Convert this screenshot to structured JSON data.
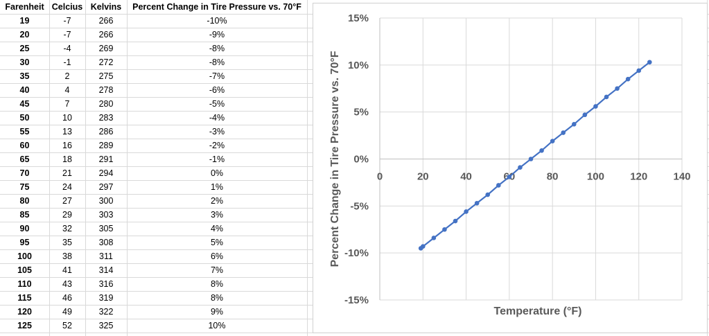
{
  "table": {
    "headers": [
      "Farenheit",
      "Celcius",
      "Kelvins",
      "Percent Change in Tire Pressure vs. 70°F"
    ],
    "rows": [
      [
        "19",
        "-7",
        "266",
        "-10%"
      ],
      [
        "20",
        "-7",
        "266",
        "-9%"
      ],
      [
        "25",
        "-4",
        "269",
        "-8%"
      ],
      [
        "30",
        "-1",
        "272",
        "-8%"
      ],
      [
        "35",
        "2",
        "275",
        "-7%"
      ],
      [
        "40",
        "4",
        "278",
        "-6%"
      ],
      [
        "45",
        "7",
        "280",
        "-5%"
      ],
      [
        "50",
        "10",
        "283",
        "-4%"
      ],
      [
        "55",
        "13",
        "286",
        "-3%"
      ],
      [
        "60",
        "16",
        "289",
        "-2%"
      ],
      [
        "65",
        "18",
        "291",
        "-1%"
      ],
      [
        "70",
        "21",
        "294",
        "0%"
      ],
      [
        "75",
        "24",
        "297",
        "1%"
      ],
      [
        "80",
        "27",
        "300",
        "2%"
      ],
      [
        "85",
        "29",
        "303",
        "3%"
      ],
      [
        "90",
        "32",
        "305",
        "4%"
      ],
      [
        "95",
        "35",
        "308",
        "5%"
      ],
      [
        "100",
        "38",
        "311",
        "6%"
      ],
      [
        "105",
        "41",
        "314",
        "7%"
      ],
      [
        "110",
        "43",
        "316",
        "8%"
      ],
      [
        "115",
        "46",
        "319",
        "8%"
      ],
      [
        "120",
        "49",
        "322",
        "9%"
      ],
      [
        "125",
        "52",
        "325",
        "10%"
      ]
    ]
  },
  "chart_data": {
    "type": "scatter",
    "xlabel": "Temperature (°F)",
    "ylabel": "Percent Change in Tire Pressure vs. 70°F",
    "xlim": [
      0,
      140
    ],
    "ylim": [
      -15,
      15
    ],
    "x_ticks": [
      "0",
      "20",
      "40",
      "60",
      "80",
      "100",
      "120",
      "140"
    ],
    "y_ticks": [
      "15%",
      "10%",
      "5%",
      "0%",
      "-5%",
      "-10%",
      "-15%"
    ],
    "grid": true,
    "color": "#4472c4",
    "x": [
      19,
      20,
      25,
      30,
      35,
      40,
      45,
      50,
      55,
      60,
      65,
      70,
      75,
      80,
      85,
      90,
      95,
      100,
      105,
      110,
      115,
      120,
      125
    ],
    "y": [
      -9.5,
      -9.3,
      -8.4,
      -7.5,
      -6.6,
      -5.6,
      -4.7,
      -3.8,
      -2.8,
      -1.9,
      -0.9,
      0.0,
      0.9,
      1.9,
      2.8,
      3.7,
      4.7,
      5.6,
      6.6,
      7.5,
      8.5,
      9.4,
      10.3
    ]
  }
}
